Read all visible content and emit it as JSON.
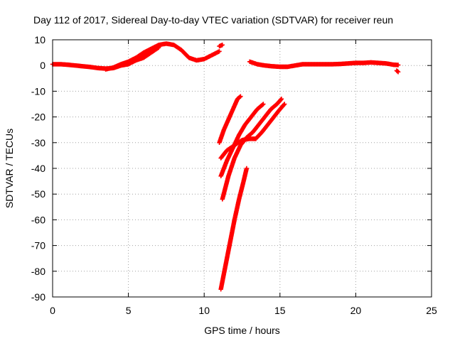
{
  "chart_data": {
    "type": "scatter",
    "title": "Day 112 of 2017, Sidereal Day-to-day VTEC variation (SDTVAR) for receiver reun",
    "xlabel": "GPS time / hours",
    "ylabel": "SDTVAR / TECUs",
    "xlim": [
      0,
      25
    ],
    "ylim": [
      -90,
      10
    ],
    "xticks": [
      0,
      5,
      10,
      15,
      20,
      25
    ],
    "yticks": [
      10,
      0,
      -10,
      -20,
      -30,
      -40,
      -50,
      -60,
      -70,
      -80,
      -90
    ],
    "grid": true,
    "legend": "none",
    "marker": "plus",
    "color": "#ff0000",
    "series": [
      {
        "x": [
          0.0,
          0.5,
          1.0,
          1.5,
          2.0,
          2.5,
          3.0,
          3.5,
          4.0,
          4.5,
          5.0,
          5.5,
          6.0,
          6.5,
          7.0,
          7.5,
          8.0,
          8.5,
          9.0,
          9.5,
          10.0,
          10.5,
          11.0
        ],
        "y": [
          0.5,
          0.5,
          0.3,
          0.0,
          -0.3,
          -0.6,
          -1.0,
          -1.2,
          -1.0,
          0.0,
          1.5,
          3.0,
          5.0,
          6.5,
          8.0,
          8.5,
          8.0,
          6.0,
          3.0,
          2.0,
          2.5,
          4.0,
          5.5
        ]
      },
      {
        "x": [
          3.5,
          4.0,
          4.5,
          5.0,
          5.5,
          6.0,
          6.5
        ],
        "y": [
          -1.5,
          -0.8,
          0.5,
          1.5,
          3.0,
          4.5,
          6.5
        ]
      },
      {
        "x": [
          4.0,
          4.5,
          5.0,
          5.5,
          6.0,
          6.5,
          7.0
        ],
        "y": [
          -1.0,
          0.0,
          0.5,
          2.0,
          3.0,
          5.0,
          7.0
        ]
      },
      {
        "x": [
          11.0,
          11.2
        ],
        "y": [
          7.5,
          8.0
        ]
      },
      {
        "x": [
          13.0,
          13.5,
          14.0,
          14.5,
          15.0,
          15.5,
          16.0,
          16.5,
          17.0,
          17.5,
          18.0,
          18.5,
          19.0,
          19.5,
          20.0,
          20.5,
          21.0,
          21.5,
          22.0,
          22.5,
          22.8
        ],
        "y": [
          1.5,
          0.5,
          0.0,
          -0.3,
          -0.5,
          -0.5,
          0.0,
          0.5,
          0.5,
          0.5,
          0.5,
          0.5,
          0.6,
          0.8,
          1.0,
          1.0,
          1.2,
          1.0,
          0.8,
          0.3,
          0.2
        ]
      },
      {
        "x": [
          22.7,
          22.8
        ],
        "y": [
          -2.0,
          -2.5
        ]
      },
      {
        "x": [
          11.0,
          11.3,
          11.6,
          11.9,
          12.2,
          12.4
        ],
        "y": [
          -30,
          -25,
          -21,
          -17,
          -13,
          -12
        ]
      },
      {
        "x": [
          11.1,
          11.5,
          11.9,
          12.3,
          12.7,
          13.1,
          13.5,
          13.9
        ],
        "y": [
          -43,
          -37,
          -32,
          -27,
          -23,
          -20,
          -17,
          -15
        ]
      },
      {
        "x": [
          11.1,
          11.5,
          12.0,
          12.5,
          13.0,
          13.4
        ],
        "y": [
          -36,
          -33,
          -31,
          -29,
          -28.5,
          -28.5
        ]
      },
      {
        "x": [
          13.4,
          13.8,
          14.2,
          14.6,
          15.0,
          15.3
        ],
        "y": [
          -28.5,
          -26,
          -23,
          -20,
          -17,
          -15
        ]
      },
      {
        "x": [
          11.2,
          11.6,
          12.0,
          12.4,
          12.8,
          13.2,
          13.6,
          14.0,
          14.4,
          14.8,
          15.1
        ],
        "y": [
          -52,
          -43,
          -36,
          -31,
          -28,
          -26,
          -23,
          -20,
          -17,
          -15,
          -13
        ]
      },
      {
        "x": [
          11.1,
          11.4,
          11.7,
          12.0,
          12.3,
          12.6,
          12.8
        ],
        "y": [
          -87,
          -78,
          -69,
          -60,
          -52,
          -45,
          -40
        ]
      }
    ]
  }
}
